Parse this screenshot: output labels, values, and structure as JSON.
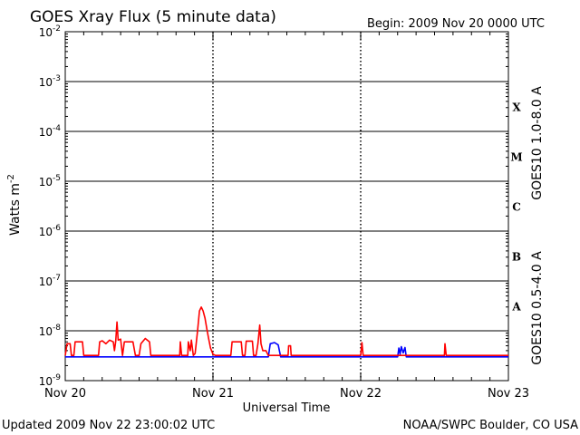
{
  "chart_data": {
    "type": "line",
    "title": "GOES Xray Flux (5 minute data)",
    "begin": "Begin:  2009 Nov 20 0000 UTC",
    "ylabel": "Watts m",
    "ylabel_sup": "-2",
    "xlabel": "Universal Time",
    "yscale": "log",
    "ylim": [
      1e-09,
      0.01
    ],
    "yticks": [
      {
        "value": 0.01,
        "base": "10",
        "exp": "-2"
      },
      {
        "value": 0.001,
        "base": "10",
        "exp": "-3"
      },
      {
        "value": 0.0001,
        "base": "10",
        "exp": "-4"
      },
      {
        "value": 1e-05,
        "base": "10",
        "exp": "-5"
      },
      {
        "value": 1e-06,
        "base": "10",
        "exp": "-6"
      },
      {
        "value": 1e-07,
        "base": "10",
        "exp": "-7"
      },
      {
        "value": 1e-08,
        "base": "10",
        "exp": "-8"
      },
      {
        "value": 1e-09,
        "base": "10",
        "exp": "-9"
      }
    ],
    "xlim": [
      0,
      72
    ],
    "xticks": [
      {
        "hour": 0,
        "label": "Nov 20"
      },
      {
        "hour": 24,
        "label": "Nov 21"
      },
      {
        "hour": 48,
        "label": "Nov 22"
      },
      {
        "hour": 72,
        "label": "Nov 23"
      }
    ],
    "flare_classes": [
      {
        "label": "X",
        "low": 0.0001
      },
      {
        "label": "M",
        "low": 1e-05
      },
      {
        "label": "C",
        "low": 1e-06
      },
      {
        "label": "B",
        "low": 1e-07
      },
      {
        "label": "A",
        "low": 1e-08
      }
    ],
    "grid": true,
    "series": [
      {
        "name": "GOES10 1.0-8.0 A",
        "color": "#ff0000",
        "points": [
          [
            0.0,
            3.2e-09
          ],
          [
            0.3,
            5.5e-09
          ],
          [
            0.8,
            5.5e-09
          ],
          [
            1.0,
            3.2e-09
          ],
          [
            1.4,
            3.2e-09
          ],
          [
            1.6,
            6e-09
          ],
          [
            2.8,
            6e-09
          ],
          [
            3.0,
            3.2e-09
          ],
          [
            3.4,
            3.2e-09
          ],
          [
            5.4,
            3.2e-09
          ],
          [
            5.6,
            6e-09
          ],
          [
            6.0,
            6.3e-09
          ],
          [
            6.6,
            5.5e-09
          ],
          [
            7.2,
            6.5e-09
          ],
          [
            7.8,
            6e-09
          ],
          [
            8.0,
            4e-09
          ],
          [
            8.2,
            6.2e-09
          ],
          [
            8.4,
            1.5e-08
          ],
          [
            8.6,
            6.5e-09
          ],
          [
            9.0,
            6.8e-09
          ],
          [
            9.3,
            3.2e-09
          ],
          [
            9.6,
            6e-09
          ],
          [
            10.4,
            6e-09
          ],
          [
            11.0,
            6e-09
          ],
          [
            11.4,
            3.2e-09
          ],
          [
            12.0,
            3.2e-09
          ],
          [
            12.3,
            5.5e-09
          ],
          [
            13.0,
            7e-09
          ],
          [
            13.7,
            6e-09
          ],
          [
            13.9,
            3.2e-09
          ],
          [
            18.6,
            3.2e-09
          ],
          [
            18.7,
            6e-09
          ],
          [
            18.9,
            3.2e-09
          ],
          [
            19.9,
            3.2e-09
          ],
          [
            20.0,
            6e-09
          ],
          [
            20.3,
            4e-09
          ],
          [
            20.5,
            6.5e-09
          ],
          [
            20.8,
            3.2e-09
          ],
          [
            21.1,
            3.5e-09
          ],
          [
            21.3,
            6e-09
          ],
          [
            21.5,
            1e-08
          ],
          [
            21.8,
            2.5e-08
          ],
          [
            22.1,
            3e-08
          ],
          [
            22.4,
            2.5e-08
          ],
          [
            22.7,
            1.8e-08
          ],
          [
            23.0,
            1.1e-08
          ],
          [
            23.3,
            7e-09
          ],
          [
            23.6,
            4.5e-09
          ],
          [
            24.0,
            3.4e-09
          ],
          [
            24.4,
            3.2e-09
          ],
          [
            26.9,
            3.2e-09
          ],
          [
            27.1,
            6e-09
          ],
          [
            28.6,
            6e-09
          ],
          [
            28.8,
            3.2e-09
          ],
          [
            29.2,
            3.2e-09
          ],
          [
            29.4,
            6.2e-09
          ],
          [
            30.4,
            6.2e-09
          ],
          [
            30.6,
            3.2e-09
          ],
          [
            31.0,
            3.2e-09
          ],
          [
            31.3,
            5.5e-09
          ],
          [
            31.6,
            1.3e-08
          ],
          [
            31.8,
            5.5e-09
          ],
          [
            32.1,
            4e-09
          ],
          [
            32.6,
            4e-09
          ],
          [
            33.0,
            3.2e-09
          ],
          [
            36.2,
            3.2e-09
          ],
          [
            36.3,
            5e-09
          ],
          [
            36.6,
            5e-09
          ],
          [
            36.7,
            3.2e-09
          ],
          [
            48.0,
            3.2e-09
          ],
          [
            48.2,
            5.8e-09
          ],
          [
            48.4,
            3.2e-09
          ],
          [
            61.6,
            3.2e-09
          ],
          [
            61.7,
            5.5e-09
          ],
          [
            61.9,
            3.2e-09
          ],
          [
            72.0,
            3.2e-09
          ]
        ]
      },
      {
        "name": "GOES10 0.5-4.0 A",
        "color": "#0000ff",
        "points": [
          [
            0.0,
            3e-09
          ],
          [
            33.0,
            3e-09
          ],
          [
            33.3,
            5.5e-09
          ],
          [
            34.0,
            5.8e-09
          ],
          [
            34.6,
            5.2e-09
          ],
          [
            35.0,
            3e-09
          ],
          [
            54.0,
            3e-09
          ],
          [
            54.2,
            4.5e-09
          ],
          [
            54.4,
            3.4e-09
          ],
          [
            54.6,
            4.8e-09
          ],
          [
            54.9,
            3.6e-09
          ],
          [
            55.2,
            4.6e-09
          ],
          [
            55.4,
            3e-09
          ],
          [
            72.0,
            3e-09
          ]
        ]
      }
    ]
  },
  "footer": {
    "updated": "Updated 2009 Nov 22 23:00:02 UTC",
    "source": "NOAA/SWPC Boulder, CO USA"
  }
}
